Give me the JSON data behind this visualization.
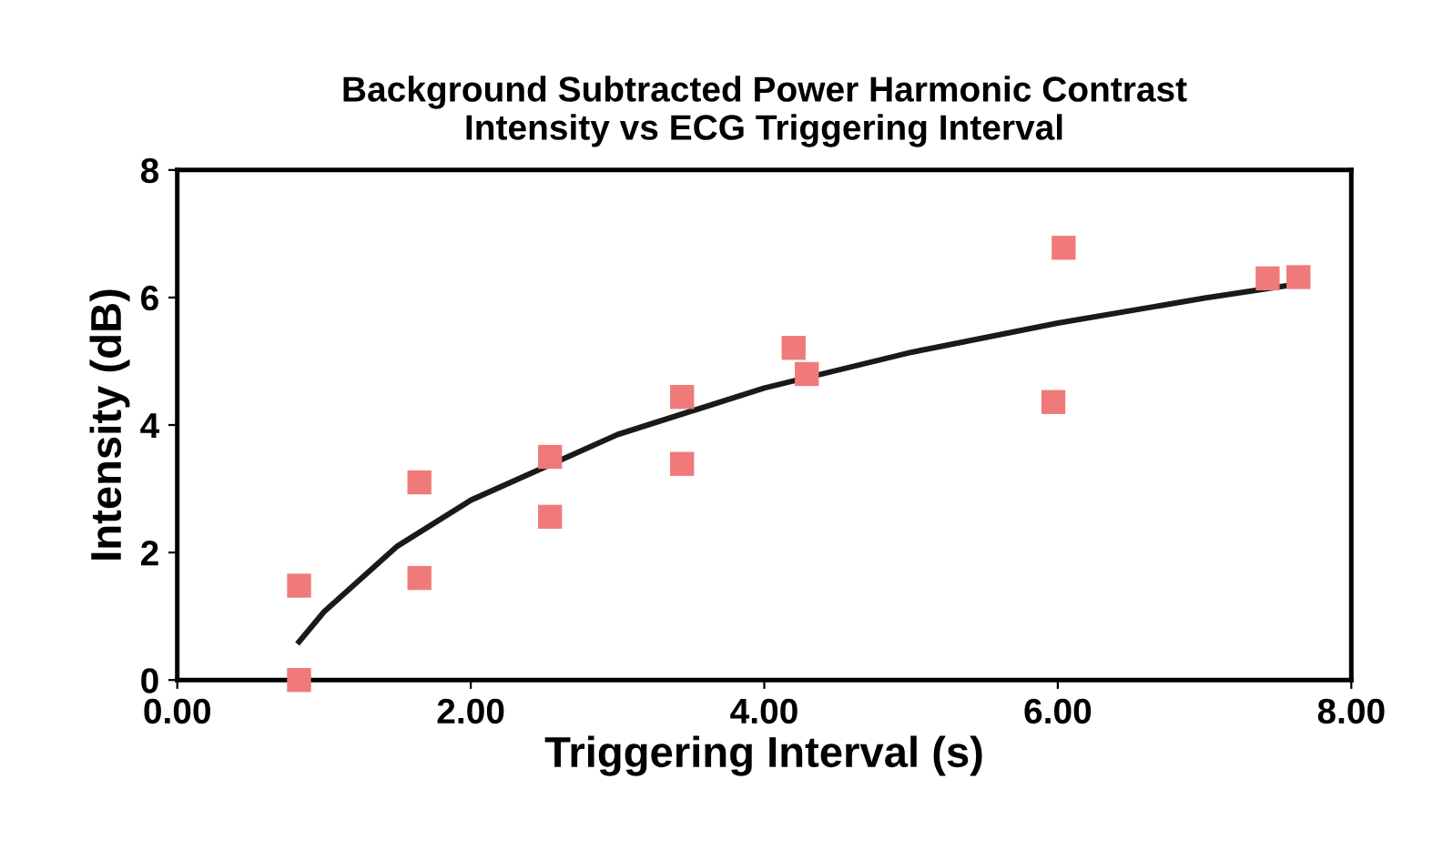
{
  "chart_data": {
    "type": "scatter",
    "title": "Background Subtracted Power Harmonic Contrast\nIntensity vs ECG Triggering Interval",
    "xlabel": "Triggering Interval (s)",
    "ylabel": "Intensity (dB)",
    "xlim": [
      0,
      8
    ],
    "ylim": [
      0,
      8
    ],
    "xticks": [
      {
        "value": 0,
        "label": "0.00"
      },
      {
        "value": 2,
        "label": "2.00"
      },
      {
        "value": 4,
        "label": "4.00"
      },
      {
        "value": 6,
        "label": "6.00"
      },
      {
        "value": 8,
        "label": "8.00"
      }
    ],
    "yticks": [
      0,
      2,
      4,
      6,
      8
    ],
    "grid": false,
    "legend": false,
    "marker": "square",
    "series": [
      {
        "color": "#f07a7a",
        "x": [
          0.83,
          0.83,
          1.65,
          1.65,
          2.54,
          2.54,
          3.44,
          3.44,
          4.2,
          4.29,
          5.97,
          6.04,
          7.43,
          7.64
        ],
        "values": [
          1.48,
          0,
          3.1,
          1.6,
          3.5,
          2.56,
          4.44,
          3.39,
          5.21,
          4.8,
          4.36,
          6.78,
          6.3,
          6.32
        ]
      },
      {
        "type": "line",
        "marker": "none",
        "color": "#1a1a1a",
        "x": [
          0.83,
          1,
          1.5,
          2,
          3,
          4,
          5,
          6,
          7,
          7.6
        ],
        "values": [
          0.6,
          1.07,
          2.1,
          2.82,
          3.85,
          4.58,
          5.14,
          5.6,
          5.99,
          6.2
        ]
      }
    ]
  }
}
